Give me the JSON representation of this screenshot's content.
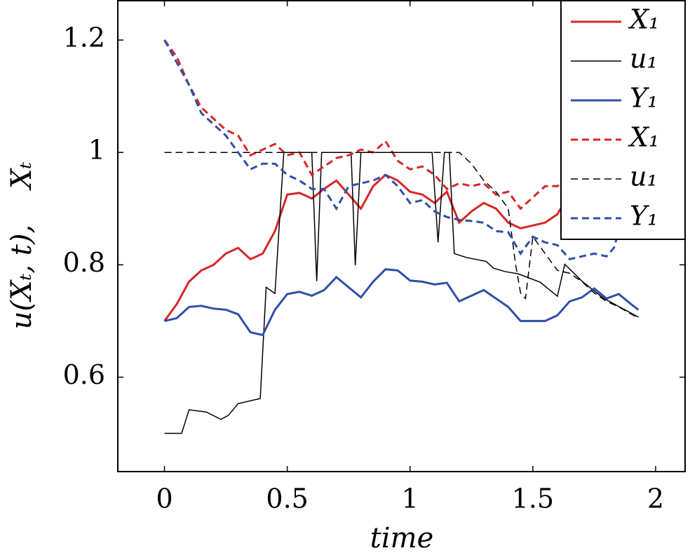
{
  "chart_data": {
    "type": "line",
    "x_label": "time",
    "y_label": "u(Xₜ, t),    Xₜ",
    "xlim": [
      -0.19,
      2.12
    ],
    "ylim": [
      0.432,
      1.27
    ],
    "xticks": [
      0,
      0.5,
      1,
      1.5,
      2
    ],
    "yticks": [
      0.6,
      0.8,
      1,
      {
        "value": 1.2,
        "label": "1.2"
      }
    ],
    "legend": "upper right",
    "series": [
      {
        "name": "X₁",
        "color": "#d62728",
        "dash": false,
        "x": [
          0,
          0.05,
          0.1,
          0.15,
          0.2,
          0.25,
          0.3,
          0.35,
          0.4,
          0.45,
          0.5,
          0.55,
          0.6,
          0.65,
          0.7,
          0.75,
          0.8,
          0.85,
          0.9,
          0.95,
          1.0,
          1.05,
          1.1,
          1.15,
          1.2,
          1.25,
          1.3,
          1.35,
          1.4,
          1.45,
          1.5,
          1.55,
          1.6,
          1.62
        ],
        "values": [
          0.7,
          0.73,
          0.77,
          0.79,
          0.8,
          0.82,
          0.83,
          0.81,
          0.82,
          0.86,
          0.925,
          0.928,
          0.918,
          0.935,
          0.95,
          0.925,
          0.9,
          0.94,
          0.96,
          0.95,
          0.93,
          0.925,
          0.91,
          0.93,
          0.875,
          0.895,
          0.91,
          0.9,
          0.875,
          0.865,
          0.87,
          0.875,
          0.89,
          0.905
        ]
      },
      {
        "name": "u₁",
        "color": "#000000",
        "dash": false,
        "x": [
          0,
          0.07,
          0.1,
          0.17,
          0.23,
          0.26,
          0.3,
          0.39,
          0.414,
          0.45,
          0.486,
          0.6,
          0.62,
          0.64,
          0.76,
          0.777,
          0.8,
          1.09,
          1.114,
          1.14,
          1.16,
          1.18,
          1.23,
          1.31,
          1.34,
          1.386,
          1.44,
          1.53,
          1.6,
          1.63,
          1.7,
          1.786,
          1.9,
          1.93
        ],
        "values": [
          0.5,
          0.5,
          0.542,
          0.538,
          0.525,
          0.532,
          0.553,
          0.562,
          0.76,
          0.749,
          1.0,
          1.0,
          0.771,
          1.0,
          1.0,
          0.799,
          1.0,
          1.0,
          0.84,
          1.0,
          1.0,
          0.82,
          0.813,
          0.806,
          0.794,
          0.788,
          0.784,
          0.769,
          0.744,
          0.801,
          0.771,
          0.741,
          0.714,
          0.707
        ]
      },
      {
        "name": "Y₁",
        "color": "#2f4fa8",
        "dash": false,
        "x": [
          0,
          0.05,
          0.1,
          0.15,
          0.2,
          0.25,
          0.3,
          0.35,
          0.4,
          0.45,
          0.5,
          0.55,
          0.6,
          0.65,
          0.7,
          0.75,
          0.8,
          0.85,
          0.9,
          0.95,
          1.0,
          1.05,
          1.1,
          1.15,
          1.2,
          1.25,
          1.3,
          1.35,
          1.4,
          1.45,
          1.5,
          1.55,
          1.6,
          1.65,
          1.7,
          1.75,
          1.8,
          1.85,
          1.9,
          1.93
        ],
        "values": [
          0.7,
          0.705,
          0.725,
          0.727,
          0.722,
          0.72,
          0.712,
          0.68,
          0.675,
          0.72,
          0.748,
          0.752,
          0.745,
          0.755,
          0.778,
          0.76,
          0.742,
          0.77,
          0.792,
          0.79,
          0.772,
          0.77,
          0.765,
          0.768,
          0.735,
          0.745,
          0.755,
          0.74,
          0.725,
          0.7,
          0.7,
          0.7,
          0.71,
          0.735,
          0.742,
          0.758,
          0.74,
          0.748,
          0.73,
          0.72
        ]
      },
      {
        "name": "X₁",
        "color": "#d62728",
        "dash": true,
        "x": [
          0,
          0.05,
          0.1,
          0.15,
          0.2,
          0.25,
          0.3,
          0.35,
          0.4,
          0.45,
          0.5,
          0.55,
          0.6,
          0.65,
          0.7,
          0.75,
          0.8,
          0.85,
          0.9,
          0.95,
          1.0,
          1.05,
          1.1,
          1.15,
          1.2,
          1.25,
          1.3,
          1.35,
          1.4,
          1.45,
          1.5,
          1.55,
          1.6,
          1.62
        ],
        "values": [
          1.2,
          1.17,
          1.12,
          1.08,
          1.06,
          1.04,
          1.03,
          0.995,
          1.005,
          1.015,
          0.995,
          1.0,
          0.96,
          0.975,
          0.99,
          0.995,
          1.005,
          1.0,
          1.02,
          0.985,
          0.97,
          0.975,
          0.96,
          0.935,
          0.945,
          0.94,
          0.945,
          0.925,
          0.93,
          0.9,
          0.92,
          0.94,
          0.94,
          0.945
        ]
      },
      {
        "name": "u₁",
        "color": "#000000",
        "dash": true,
        "x": [
          0,
          1.2,
          1.25,
          1.3,
          1.35,
          1.4,
          1.43,
          1.45,
          1.47,
          1.5,
          1.55,
          1.6,
          1.65,
          1.7,
          1.75,
          1.8,
          1.85,
          1.93
        ],
        "values": [
          1.0,
          1.0,
          0.98,
          0.95,
          0.93,
          0.9,
          0.8,
          0.75,
          0.74,
          0.85,
          0.82,
          0.79,
          0.785,
          0.77,
          0.75,
          0.735,
          0.725,
          0.705
        ]
      },
      {
        "name": "Y₁",
        "color": "#2f4fa8",
        "dash": true,
        "x": [
          0,
          0.05,
          0.1,
          0.15,
          0.2,
          0.25,
          0.3,
          0.35,
          0.4,
          0.45,
          0.5,
          0.55,
          0.6,
          0.65,
          0.7,
          0.75,
          0.8,
          0.85,
          0.9,
          0.95,
          1.0,
          1.05,
          1.1,
          1.15,
          1.2,
          1.25,
          1.3,
          1.35,
          1.4,
          1.45,
          1.5,
          1.55,
          1.6,
          1.65,
          1.7,
          1.75,
          1.8,
          1.83,
          1.85
        ],
        "values": [
          1.2,
          1.16,
          1.12,
          1.07,
          1.05,
          1.03,
          1.0,
          0.97,
          0.98,
          0.98,
          0.96,
          0.95,
          0.935,
          0.935,
          0.9,
          0.94,
          0.945,
          0.95,
          0.96,
          0.94,
          0.91,
          0.915,
          0.895,
          0.885,
          0.88,
          0.878,
          0.875,
          0.86,
          0.858,
          0.82,
          0.85,
          0.84,
          0.835,
          0.81,
          0.815,
          0.82,
          0.815,
          0.83,
          0.86
        ]
      }
    ]
  }
}
